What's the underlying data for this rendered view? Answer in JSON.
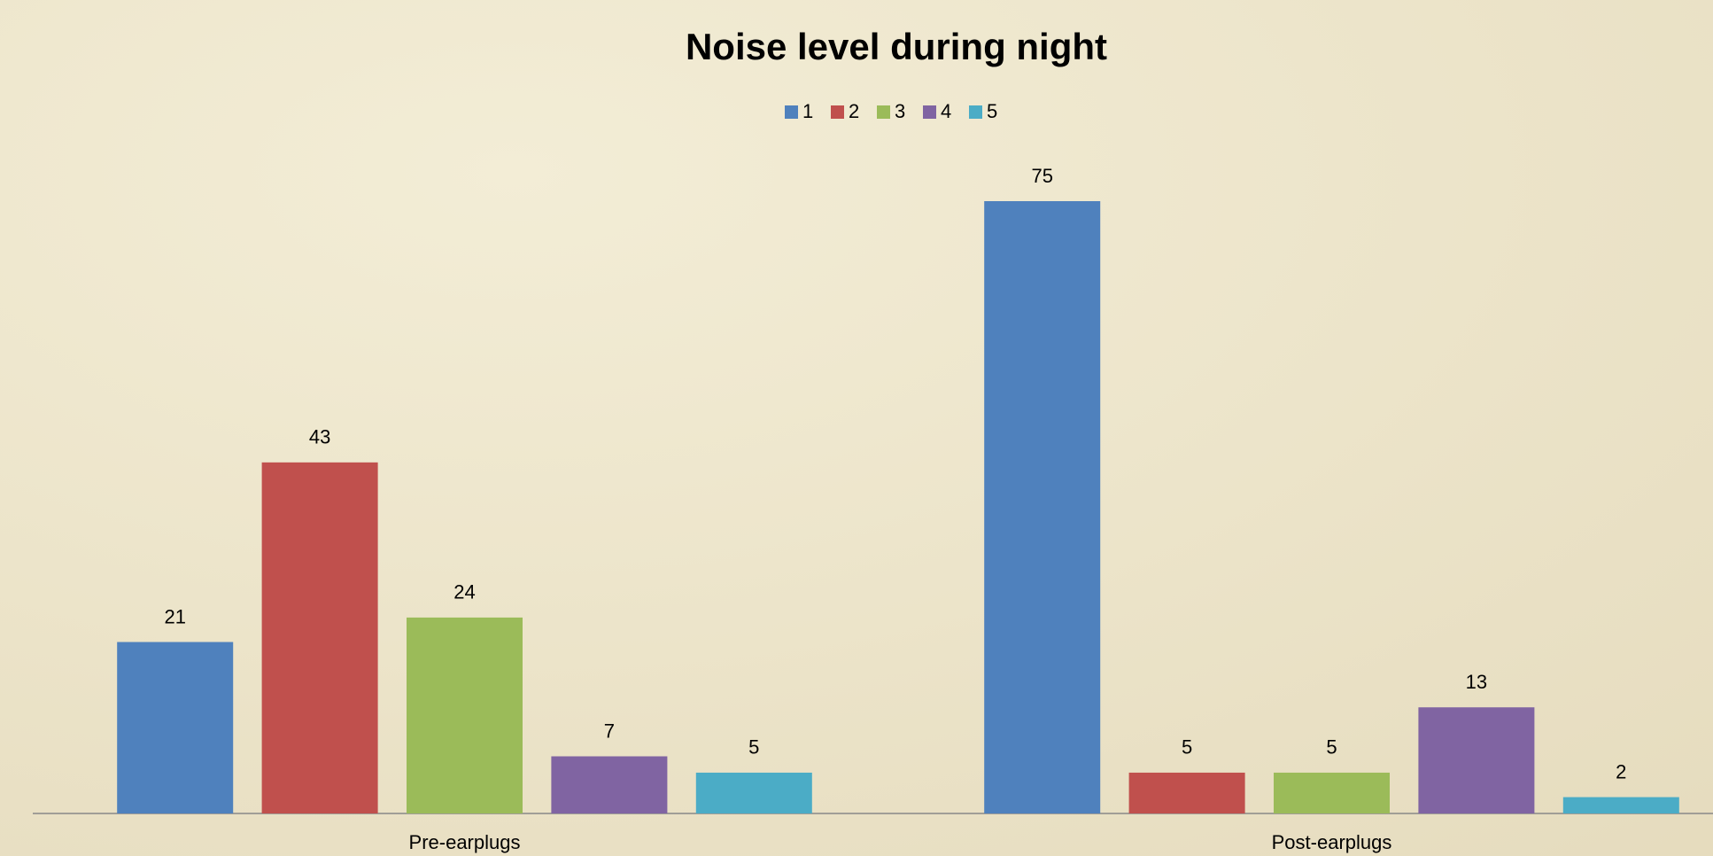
{
  "chart_data": {
    "type": "bar",
    "title": "Noise level during night",
    "categories": [
      "Pre-earplugs",
      "Post-earplugs"
    ],
    "series": [
      {
        "name": "1",
        "color": "#4f81bd",
        "values": [
          21,
          75
        ]
      },
      {
        "name": "2",
        "color": "#c0504d",
        "values": [
          43,
          5
        ]
      },
      {
        "name": "3",
        "color": "#9bbb59",
        "values": [
          24,
          5
        ]
      },
      {
        "name": "4",
        "color": "#8064a2",
        "values": [
          7,
          13
        ]
      },
      {
        "name": "5",
        "color": "#4bacc6",
        "values": [
          5,
          2
        ]
      }
    ],
    "legend": "top",
    "grid": false
  }
}
